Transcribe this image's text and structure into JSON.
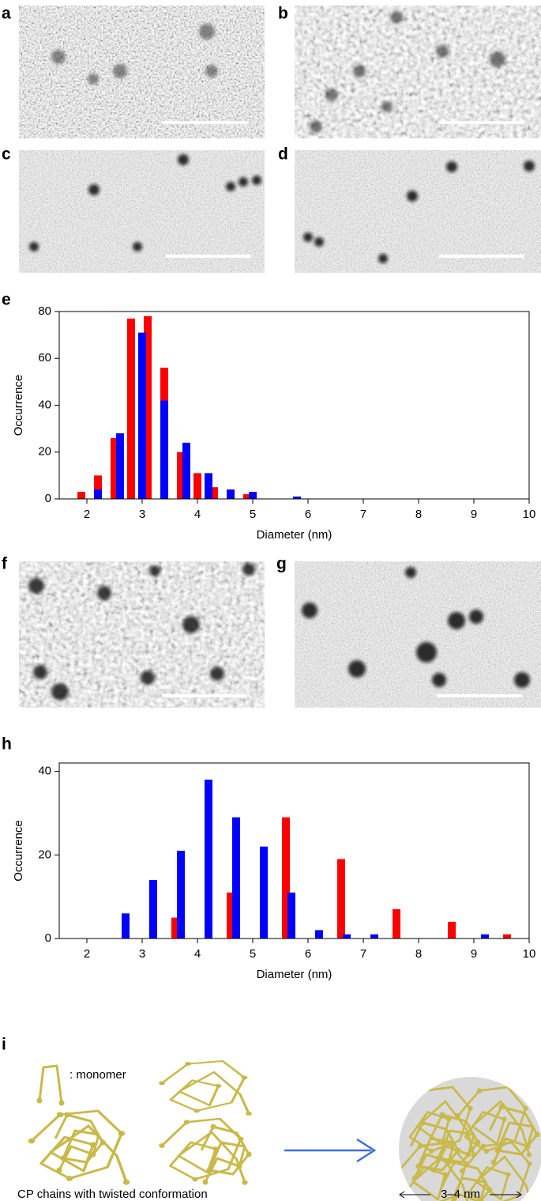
{
  "panel_labels": [
    "a",
    "b",
    "c",
    "d",
    "e",
    "f",
    "g",
    "h",
    "i"
  ],
  "chart_data": [
    {
      "type": "bar",
      "xlabel": "Diameter (nm)",
      "ylabel": "Occurrence",
      "xlim": [
        1.5,
        10
      ],
      "xticks": [
        2,
        3,
        4,
        5,
        6,
        7,
        8,
        9,
        10
      ],
      "ylim": [
        0,
        80
      ],
      "yticks": [
        0,
        20,
        40,
        60,
        80
      ],
      "series": [
        {
          "color": "#ff0000",
          "x": [
            1.9,
            2.2,
            2.5,
            2.8,
            3.1,
            3.4,
            3.7,
            4.0,
            4.3,
            4.9
          ],
          "values": [
            3,
            10,
            26,
            77,
            78,
            56,
            20,
            11,
            5,
            2
          ]
        },
        {
          "color": "#0000ff",
          "x": [
            2.2,
            2.6,
            3.0,
            3.4,
            3.8,
            4.2,
            4.6,
            5.0,
            5.8
          ],
          "values": [
            4,
            28,
            71,
            42,
            24,
            11,
            4,
            3,
            1
          ]
        }
      ]
    },
    {
      "type": "bar",
      "xlabel": "Diameter (nm)",
      "ylabel": "Occurrence",
      "xlim": [
        1.5,
        10
      ],
      "xticks": [
        2,
        3,
        4,
        5,
        6,
        7,
        8,
        9,
        10
      ],
      "ylim": [
        0,
        42
      ],
      "yticks": [
        0,
        20,
        40
      ],
      "series": [
        {
          "color": "#ff0000",
          "x": [
            3.6,
            4.6,
            5.6,
            6.6,
            7.6,
            8.6,
            9.6
          ],
          "values": [
            5,
            11,
            29,
            19,
            7,
            4,
            1
          ]
        },
        {
          "color": "#0000ff",
          "x": [
            2.7,
            3.2,
            3.7,
            4.2,
            4.7,
            5.2,
            5.7,
            6.2,
            6.7,
            7.2,
            9.2
          ],
          "values": [
            6,
            14,
            21,
            38,
            29,
            22,
            11,
            2,
            1,
            1,
            1
          ]
        }
      ]
    }
  ],
  "diagram": {
    "monomer_label": ": monomer",
    "caption": "CP chains with twisted conformation",
    "size_label": "3–4 nm"
  }
}
